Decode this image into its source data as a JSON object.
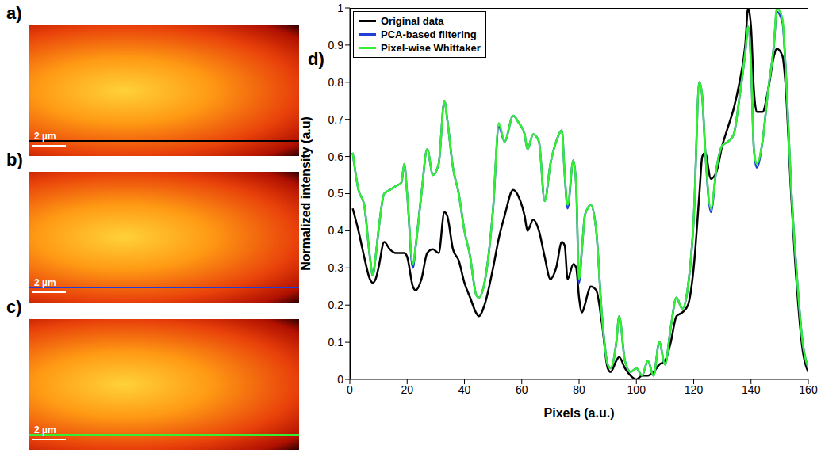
{
  "panels": [
    {
      "label": "a)",
      "scale_bar": "2 µm"
    },
    {
      "label": "b)",
      "scale_bar": "2 µm"
    },
    {
      "label": "c)",
      "scale_bar": "2 µm"
    }
  ],
  "chart_data": {
    "type": "line",
    "label": "d)",
    "x_label": "Pixels (a.u.)",
    "y_label": "Normalized intensity (a.u)",
    "x": [
      1,
      3,
      5,
      7,
      8,
      9,
      10,
      12,
      14,
      16,
      18,
      19,
      20,
      22,
      23,
      25,
      27,
      29,
      31,
      33,
      34,
      36,
      38,
      40,
      42,
      44,
      45,
      47,
      50,
      52,
      54,
      57,
      59,
      61,
      62,
      64,
      66,
      68,
      70,
      72,
      74,
      75,
      76,
      78,
      79,
      80,
      81,
      82,
      83,
      84,
      86,
      88,
      90,
      91,
      93,
      94,
      96,
      98,
      100,
      102,
      104,
      106,
      108,
      110,
      112,
      114,
      116,
      118,
      120,
      122,
      123,
      124,
      126,
      128,
      130,
      132,
      134,
      136,
      138,
      139,
      140,
      141,
      142,
      144,
      146,
      148,
      149,
      151,
      152,
      154,
      156,
      158,
      160
    ],
    "series": [
      {
        "name": "Original data",
        "color": "#000000",
        "values": [
          0.46,
          0.4,
          0.33,
          0.27,
          0.26,
          0.27,
          0.3,
          0.37,
          0.35,
          0.34,
          0.34,
          0.34,
          0.33,
          0.25,
          0.24,
          0.27,
          0.34,
          0.35,
          0.34,
          0.45,
          0.44,
          0.35,
          0.32,
          0.26,
          0.22,
          0.18,
          0.17,
          0.2,
          0.3,
          0.38,
          0.44,
          0.51,
          0.49,
          0.44,
          0.4,
          0.43,
          0.4,
          0.33,
          0.27,
          0.3,
          0.37,
          0.36,
          0.27,
          0.31,
          0.3,
          0.22,
          0.18,
          0.2,
          0.23,
          0.25,
          0.24,
          0.15,
          0.03,
          0.02,
          0.05,
          0.06,
          0.03,
          0.01,
          0.0,
          0.01,
          0.01,
          0.02,
          0.04,
          0.05,
          0.1,
          0.17,
          0.18,
          0.2,
          0.3,
          0.5,
          0.6,
          0.61,
          0.54,
          0.56,
          0.63,
          0.68,
          0.73,
          0.8,
          0.9,
          1.0,
          0.95,
          0.78,
          0.72,
          0.72,
          0.78,
          0.87,
          0.89,
          0.87,
          0.8,
          0.5,
          0.25,
          0.08,
          0.02
        ]
      },
      {
        "name": "PCA-based filtering",
        "color": "#1f3fd6",
        "values": [
          0.61,
          0.51,
          0.47,
          0.33,
          0.28,
          0.33,
          0.4,
          0.5,
          0.51,
          0.52,
          0.53,
          0.58,
          0.5,
          0.3,
          0.36,
          0.5,
          0.62,
          0.55,
          0.58,
          0.75,
          0.7,
          0.57,
          0.5,
          0.4,
          0.33,
          0.23,
          0.22,
          0.26,
          0.46,
          0.68,
          0.64,
          0.71,
          0.69,
          0.66,
          0.62,
          0.66,
          0.64,
          0.48,
          0.58,
          0.64,
          0.67,
          0.55,
          0.46,
          0.59,
          0.52,
          0.26,
          0.35,
          0.44,
          0.46,
          0.47,
          0.4,
          0.17,
          0.04,
          0.03,
          0.1,
          0.17,
          0.05,
          0.02,
          0.03,
          0.01,
          0.05,
          0.01,
          0.1,
          0.04,
          0.14,
          0.22,
          0.19,
          0.25,
          0.43,
          0.8,
          0.76,
          0.62,
          0.45,
          0.57,
          0.63,
          0.64,
          0.66,
          0.76,
          0.88,
          0.95,
          0.85,
          0.62,
          0.57,
          0.64,
          0.78,
          0.9,
          0.99,
          0.96,
          0.85,
          0.52,
          0.28,
          0.1,
          0.03
        ]
      },
      {
        "name": "Pixel-wise Whittaker",
        "color": "#33ee33",
        "values": [
          0.61,
          0.51,
          0.47,
          0.33,
          0.28,
          0.33,
          0.4,
          0.5,
          0.51,
          0.52,
          0.53,
          0.58,
          0.5,
          0.31,
          0.36,
          0.5,
          0.62,
          0.55,
          0.58,
          0.75,
          0.7,
          0.57,
          0.5,
          0.4,
          0.33,
          0.23,
          0.22,
          0.26,
          0.46,
          0.69,
          0.64,
          0.71,
          0.69,
          0.66,
          0.62,
          0.66,
          0.64,
          0.48,
          0.58,
          0.64,
          0.67,
          0.55,
          0.47,
          0.59,
          0.52,
          0.27,
          0.35,
          0.44,
          0.46,
          0.47,
          0.4,
          0.17,
          0.04,
          0.03,
          0.1,
          0.17,
          0.05,
          0.02,
          0.03,
          0.01,
          0.05,
          0.01,
          0.1,
          0.04,
          0.14,
          0.22,
          0.19,
          0.25,
          0.43,
          0.8,
          0.76,
          0.62,
          0.46,
          0.57,
          0.63,
          0.64,
          0.66,
          0.76,
          0.88,
          0.95,
          0.85,
          0.62,
          0.58,
          0.64,
          0.78,
          0.9,
          1.0,
          0.97,
          0.85,
          0.52,
          0.28,
          0.1,
          0.03
        ]
      }
    ],
    "xlim": [
      0,
      160
    ],
    "ylim": [
      0,
      1
    ],
    "xticks": [
      0,
      20,
      40,
      60,
      80,
      100,
      120,
      140,
      160
    ],
    "yticks": [
      0,
      0.1,
      0.2,
      0.3,
      0.4,
      0.5,
      0.6,
      0.7,
      0.8,
      0.9,
      1
    ],
    "legend": "upper left",
    "grid": false
  }
}
